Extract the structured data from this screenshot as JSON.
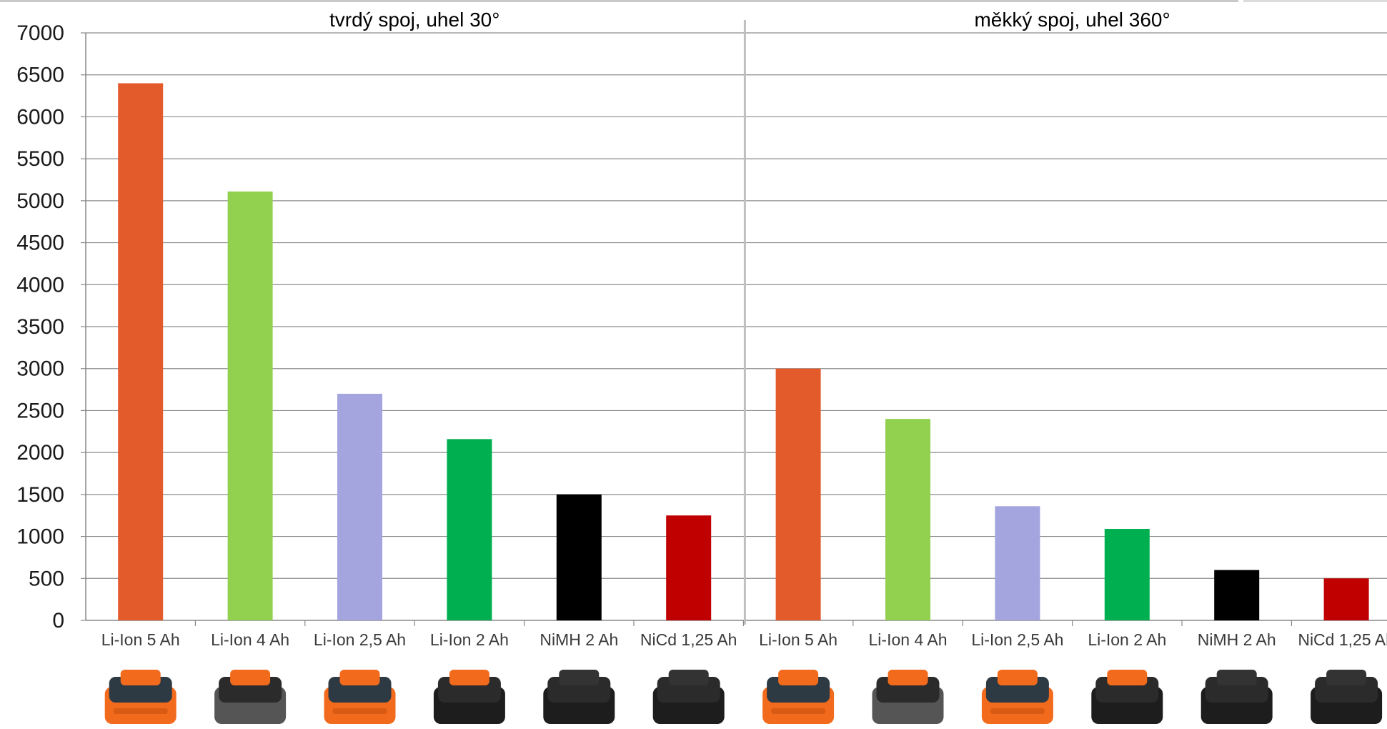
{
  "chart_data": {
    "type": "bar",
    "ylim": [
      0,
      7000
    ],
    "yticks": [
      0,
      500,
      1000,
      1500,
      2000,
      2500,
      3000,
      3500,
      4000,
      4500,
      5000,
      5500,
      6000,
      6500,
      7000
    ],
    "grid": true,
    "colors": [
      "#e35a2b",
      "#92d050",
      "#a4a4df",
      "#00b050",
      "#000000",
      "#c00000"
    ],
    "panels": [
      {
        "title": "tvrdý spoj, uhel 30°",
        "categories": [
          "Li-Ion 5 Ah",
          "Li-Ion 4 Ah",
          "Li-Ion 2,5 Ah",
          "Li-Ion 2 Ah",
          "NiMH 2 Ah",
          "NiCd 1,25 Ah"
        ],
        "values": [
          6400,
          5110,
          2700,
          2160,
          1500,
          1250
        ]
      },
      {
        "title": "měkký spoj, uhel 360°",
        "categories": [
          "Li-Ion 5 Ah",
          "Li-Ion 4 Ah",
          "Li-Ion 2,5 Ah",
          "Li-Ion 2 Ah",
          "NiMH 2 Ah",
          "NiCd 1,25 Ah"
        ],
        "values": [
          3000,
          2400,
          1360,
          1090,
          600,
          500
        ]
      }
    ]
  },
  "battery_icons": [
    "orange-battery-icon",
    "gray-battery-icon",
    "orange-battery-icon",
    "black-battery-icon",
    "nimh-battery-icon",
    "nicd-battery-icon"
  ]
}
